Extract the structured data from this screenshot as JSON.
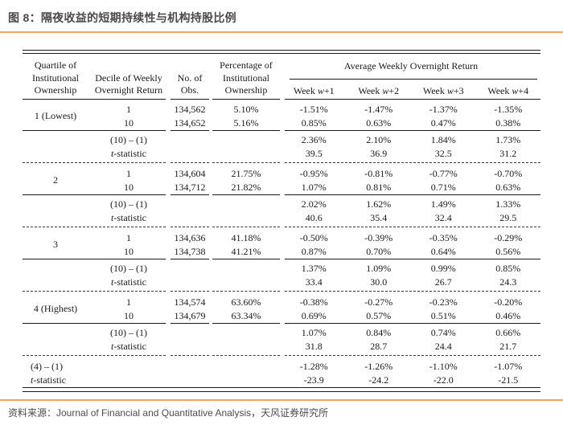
{
  "title": "图 8：隔夜收益的短期持续性与机构持股比例",
  "source": "资料来源：Journal of Financial and Quantitative Analysis，天风证券研究所",
  "colors": {
    "accent_orange": "#f2a45f",
    "rule_dark": "#1a1a1a"
  },
  "table": {
    "headers": {
      "quartile": [
        "Quartile of",
        "Institutional",
        "Ownership"
      ],
      "decile": [
        "Decile of Weekly",
        "Overnight Return"
      ],
      "obs": [
        "No. of",
        "Obs."
      ],
      "pct": [
        "Percentage of",
        "Institutional",
        "Ownership"
      ],
      "weeks_span": "Average Weekly Overnight Return",
      "weeks": [
        {
          "pre": "Week ",
          "it": "w",
          "post": "+1"
        },
        {
          "pre": "Week ",
          "it": "w",
          "post": "+2"
        },
        {
          "pre": "Week ",
          "it": "w",
          "post": "+3"
        },
        {
          "pre": "Week ",
          "it": "w",
          "post": "+4"
        }
      ]
    },
    "tstat_it": "t",
    "tstat_rest": "-statistic",
    "groups": [
      {
        "quartile": "1 (Lowest)",
        "rows": [
          {
            "decile": "1",
            "obs": "134,562",
            "pct": "5.10%",
            "w1": "-1.51%",
            "w2": "-1.47%",
            "w3": "-1.37%",
            "w4": "-1.35%"
          },
          {
            "decile": "10",
            "obs": "134,652",
            "pct": "5.16%",
            "w1": "0.85%",
            "w2": "0.63%",
            "w3": "0.47%",
            "w4": "0.38%"
          }
        ],
        "diff_label": "(10) – (1)",
        "diff": {
          "w1": "2.36%",
          "w2": "2.10%",
          "w3": "1.84%",
          "w4": "1.73%"
        },
        "tstat": {
          "w1": "39.5",
          "w2": "36.9",
          "w3": "32.5",
          "w4": "31.2"
        }
      },
      {
        "quartile": "2",
        "rows": [
          {
            "decile": "1",
            "obs": "134,604",
            "pct": "21.75%",
            "w1": "-0.95%",
            "w2": "-0.81%",
            "w3": "-0.77%",
            "w4": "-0.70%"
          },
          {
            "decile": "10",
            "obs": "134,712",
            "pct": "21.82%",
            "w1": "1.07%",
            "w2": "0.81%",
            "w3": "0.71%",
            "w4": "0.63%"
          }
        ],
        "diff_label": "(10) – (1)",
        "diff": {
          "w1": "2.02%",
          "w2": "1.62%",
          "w3": "1.49%",
          "w4": "1.33%"
        },
        "tstat": {
          "w1": "40.6",
          "w2": "35.4",
          "w3": "32.4",
          "w4": "29.5"
        }
      },
      {
        "quartile": "3",
        "rows": [
          {
            "decile": "1",
            "obs": "134,636",
            "pct": "41.18%",
            "w1": "-0.50%",
            "w2": "-0.39%",
            "w3": "-0.35%",
            "w4": "-0.29%"
          },
          {
            "decile": "10",
            "obs": "134,738",
            "pct": "41.21%",
            "w1": "0.87%",
            "w2": "0.70%",
            "w3": "0.64%",
            "w4": "0.56%"
          }
        ],
        "diff_label": "(10) – (1)",
        "diff": {
          "w1": "1.37%",
          "w2": "1.09%",
          "w3": "0.99%",
          "w4": "0.85%"
        },
        "tstat": {
          "w1": "33.4",
          "w2": "30.0",
          "w3": "26.7",
          "w4": "24.3"
        }
      },
      {
        "quartile": "4 (Highest)",
        "rows": [
          {
            "decile": "1",
            "obs": "134,574",
            "pct": "63.60%",
            "w1": "-0.38%",
            "w2": "-0.27%",
            "w3": "-0.23%",
            "w4": "-0.20%"
          },
          {
            "decile": "10",
            "obs": "134,679",
            "pct": "63.34%",
            "w1": "0.69%",
            "w2": "0.57%",
            "w3": "0.51%",
            "w4": "0.46%"
          }
        ],
        "diff_label": "(10) – (1)",
        "diff": {
          "w1": "1.07%",
          "w2": "0.84%",
          "w3": "0.74%",
          "w4": "0.66%"
        },
        "tstat": {
          "w1": "31.8",
          "w2": "28.7",
          "w3": "24.4",
          "w4": "21.7"
        }
      }
    ],
    "final": {
      "diff_label": "(4) – (1)",
      "diff": {
        "w1": "-1.28%",
        "w2": "-1.26%",
        "w3": "-1.10%",
        "w4": "-1.07%"
      },
      "tstat": {
        "w1": "-23.9",
        "w2": "-24.2",
        "w3": "-22.0",
        "w4": "-21.5"
      }
    }
  }
}
